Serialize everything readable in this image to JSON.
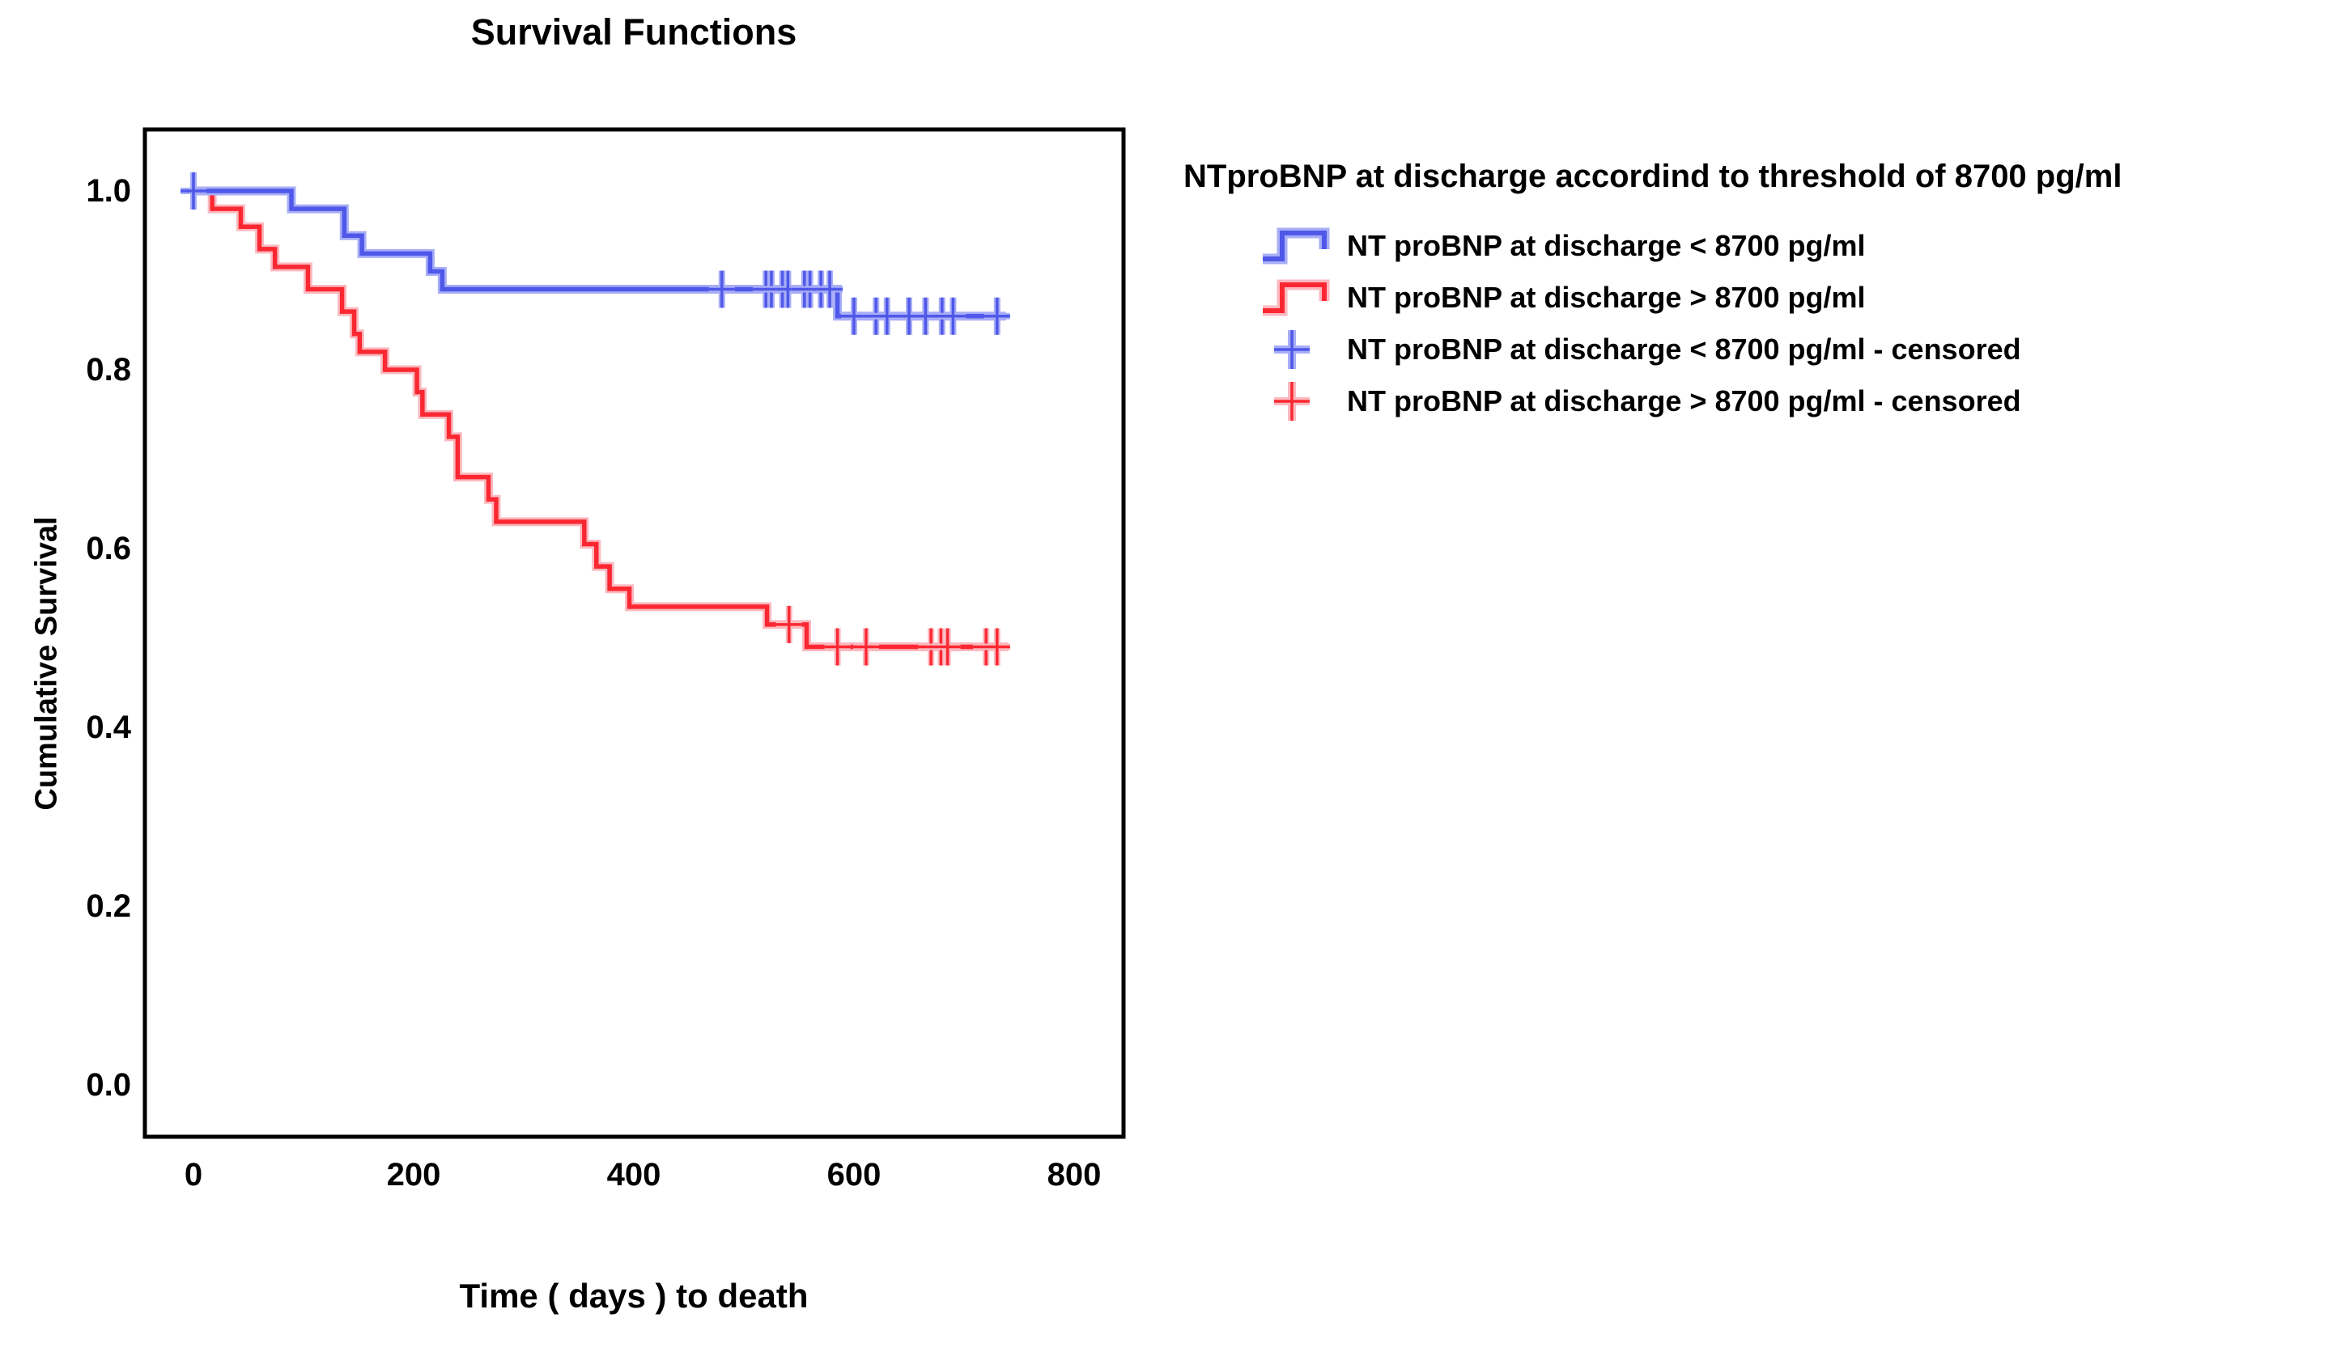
{
  "chart": {
    "title": "Survival Functions",
    "xlabel": "Time ( days ) to death",
    "ylabel": "Cumulative Survival"
  },
  "legend": {
    "title": "NTproBNP at discharge accordind to threshold of 8700 pg/ml",
    "items": [
      {
        "label": "NT proBNP at discharge < 8700 pg/ml",
        "symbol": "step-line",
        "color": "#4F58E9",
        "halo_color": "#A8AEF6"
      },
      {
        "label": "NT proBNP at discharge > 8700 pg/ml",
        "symbol": "step-line",
        "color": "#FB2832",
        "halo_color": "#FBB9BF"
      },
      {
        "label": "NT proBNP at discharge < 8700 pg/ml - censored",
        "symbol": "plus-mark",
        "color": "#4F58E9",
        "halo_color": "#A8AEF6"
      },
      {
        "label": "NT proBNP at discharge > 8700 pg/ml - censored",
        "symbol": "plus-mark",
        "color": "#FB2832",
        "halo_color": "#FBB9BF"
      }
    ]
  },
  "chart_data": {
    "type": "line",
    "subtype": "kaplan-meier-step",
    "title": "Survival Functions",
    "xlabel": "Time ( days ) to death",
    "ylabel": "Cumulative Survival",
    "xlim": [
      0,
      800
    ],
    "ylim": [
      0.0,
      1.0
    ],
    "grid": false,
    "legend_position": "right",
    "legend_title": "NTproBNP at discharge accordind to threshold of 8700 pg/ml",
    "x_ticks": [
      {
        "label": "0",
        "value": 0
      },
      {
        "label": "200",
        "value": 200
      },
      {
        "label": "400",
        "value": 400
      },
      {
        "label": "600",
        "value": 600
      },
      {
        "label": "800",
        "value": 800
      }
    ],
    "y_ticks": [
      {
        "label": "1.0",
        "value": 1.0
      },
      {
        "label": "0.8",
        "value": 0.8
      },
      {
        "label": "0.6",
        "value": 0.6
      },
      {
        "label": "0.4",
        "value": 0.4
      },
      {
        "label": "0.2",
        "value": 0.2
      },
      {
        "label": "0.0",
        "value": 0.0
      }
    ],
    "series": [
      {
        "name": "NT proBNP at discharge < 8700 pg/ml",
        "color": "#4F58E9",
        "halo_color": "#A8AEF6",
        "steps": [
          [
            0,
            1.0
          ],
          [
            89,
            0.98
          ],
          [
            137,
            0.95
          ],
          [
            153,
            0.93
          ],
          [
            215,
            0.91
          ],
          [
            226,
            0.89
          ],
          [
            585,
            0.86
          ]
        ],
        "end_time": 738,
        "censored": [
          [
            0,
            1.0
          ],
          [
            480,
            0.89
          ],
          [
            520,
            0.89
          ],
          [
            525,
            0.89
          ],
          [
            535,
            0.89
          ],
          [
            540,
            0.89
          ],
          [
            555,
            0.89
          ],
          [
            560,
            0.89
          ],
          [
            570,
            0.89
          ],
          [
            578,
            0.89
          ],
          [
            600,
            0.86
          ],
          [
            620,
            0.86
          ],
          [
            630,
            0.86
          ],
          [
            650,
            0.86
          ],
          [
            665,
            0.86
          ],
          [
            680,
            0.86
          ],
          [
            690,
            0.86
          ],
          [
            730,
            0.86
          ]
        ]
      },
      {
        "name": "NT proBNP at discharge > 8700 pg/ml",
        "color": "#FB2832",
        "halo_color": "#FBB9BF",
        "steps": [
          [
            0,
            1.0
          ],
          [
            17,
            0.98
          ],
          [
            43,
            0.96
          ],
          [
            60,
            0.935
          ],
          [
            74,
            0.915
          ],
          [
            104,
            0.89
          ],
          [
            135,
            0.865
          ],
          [
            146,
            0.84
          ],
          [
            151,
            0.82
          ],
          [
            174,
            0.8
          ],
          [
            203,
            0.775
          ],
          [
            208,
            0.75
          ],
          [
            232,
            0.725
          ],
          [
            240,
            0.68
          ],
          [
            268,
            0.655
          ],
          [
            275,
            0.63
          ],
          [
            355,
            0.605
          ],
          [
            366,
            0.58
          ],
          [
            378,
            0.555
          ],
          [
            396,
            0.535
          ],
          [
            521,
            0.515
          ],
          [
            557,
            0.49
          ]
        ],
        "end_time": 740,
        "censored": [
          [
            541,
            0.515
          ],
          [
            585,
            0.49
          ],
          [
            611,
            0.49
          ],
          [
            670,
            0.49
          ],
          [
            679,
            0.49
          ],
          [
            685,
            0.49
          ],
          [
            720,
            0.49
          ],
          [
            730,
            0.49
          ]
        ]
      }
    ],
    "colors": {
      "plot_border": "#000000",
      "background": "#ffffff",
      "text": "#000000"
    }
  }
}
